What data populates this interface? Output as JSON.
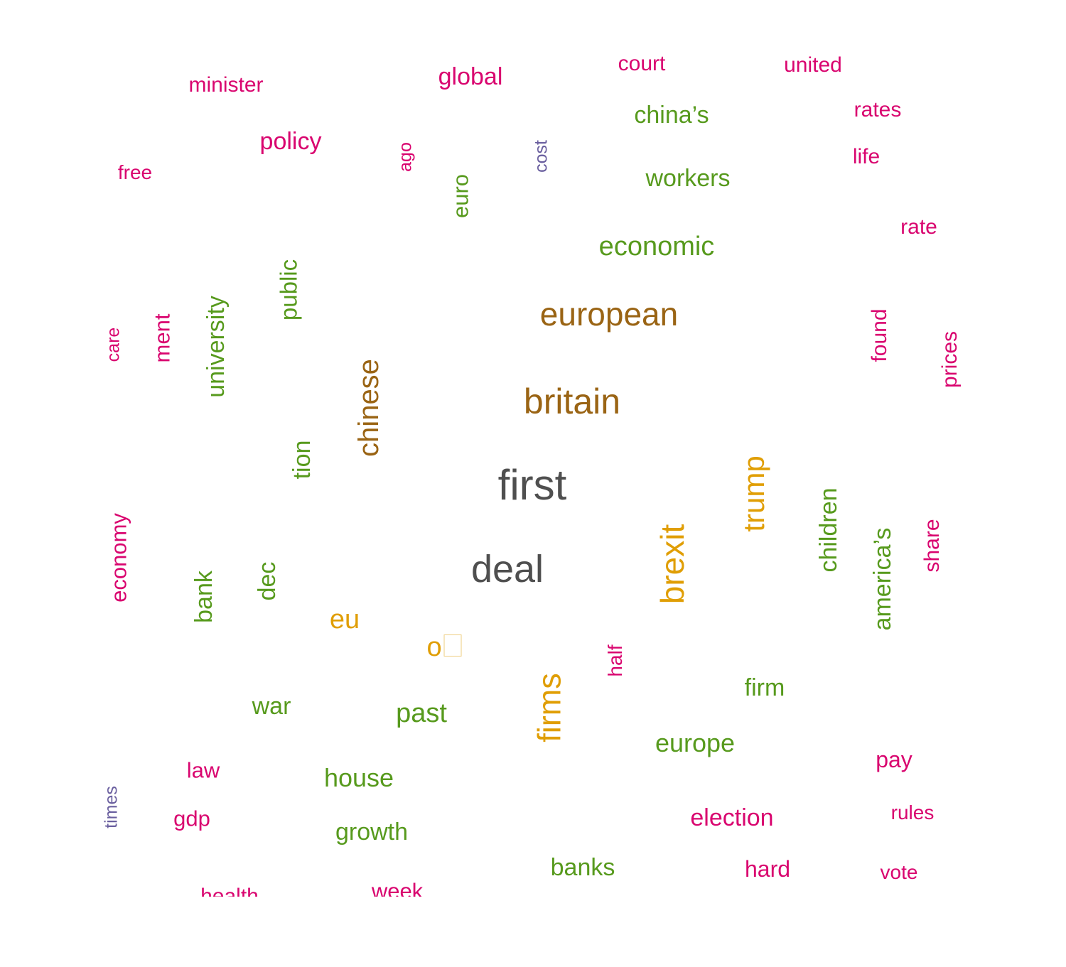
{
  "colors": {
    "pink": "#d9056f",
    "green": "#579a1d",
    "brown": "#9a6414",
    "gray": "#4f4f4f",
    "orange": "#e09e05",
    "slate": "#6a5f9f"
  },
  "words": [
    {
      "text": "minister",
      "color": "pink"
    },
    {
      "text": "global",
      "color": "pink"
    },
    {
      "text": "court",
      "color": "pink"
    },
    {
      "text": "united",
      "color": "pink"
    },
    {
      "text": "china’s",
      "color": "green"
    },
    {
      "text": "rates",
      "color": "pink"
    },
    {
      "text": "policy",
      "color": "pink"
    },
    {
      "text": "ago",
      "color": "pink"
    },
    {
      "text": "cost",
      "color": "slate"
    },
    {
      "text": "life",
      "color": "pink"
    },
    {
      "text": "free",
      "color": "pink"
    },
    {
      "text": "euro",
      "color": "green"
    },
    {
      "text": "workers",
      "color": "green"
    },
    {
      "text": "rate",
      "color": "pink"
    },
    {
      "text": "economic",
      "color": "green"
    },
    {
      "text": "public",
      "color": "green"
    },
    {
      "text": "european",
      "color": "brown"
    },
    {
      "text": "care",
      "color": "pink"
    },
    {
      "text": "ment",
      "color": "pink"
    },
    {
      "text": "university",
      "color": "green"
    },
    {
      "text": "found",
      "color": "pink"
    },
    {
      "text": "prices",
      "color": "pink"
    },
    {
      "text": "chinese",
      "color": "brown"
    },
    {
      "text": "britain",
      "color": "brown"
    },
    {
      "text": "tion",
      "color": "green"
    },
    {
      "text": "first",
      "color": "gray"
    },
    {
      "text": "trump",
      "color": "orange"
    },
    {
      "text": "children",
      "color": "green"
    },
    {
      "text": "economy",
      "color": "pink"
    },
    {
      "text": "america’s",
      "color": "green"
    },
    {
      "text": "share",
      "color": "pink"
    },
    {
      "text": "deal",
      "color": "gray"
    },
    {
      "text": "brexit",
      "color": "orange"
    },
    {
      "text": "bank",
      "color": "green"
    },
    {
      "text": "dec",
      "color": "green"
    },
    {
      "text": "eu",
      "color": "orange"
    },
    {
      "text": "o",
      "color": "orange"
    },
    {
      "text": "half",
      "color": "pink"
    },
    {
      "text": "firm",
      "color": "green"
    },
    {
      "text": "war",
      "color": "green"
    },
    {
      "text": "past",
      "color": "green"
    },
    {
      "text": "firms",
      "color": "orange"
    },
    {
      "text": "europe",
      "color": "green"
    },
    {
      "text": "pay",
      "color": "pink"
    },
    {
      "text": "law",
      "color": "pink"
    },
    {
      "text": "house",
      "color": "green"
    },
    {
      "text": "times",
      "color": "slate"
    },
    {
      "text": "gdp",
      "color": "pink"
    },
    {
      "text": "election",
      "color": "pink"
    },
    {
      "text": "rules",
      "color": "pink"
    },
    {
      "text": "growth",
      "color": "green"
    },
    {
      "text": "banks",
      "color": "green"
    },
    {
      "text": "hard",
      "color": "pink"
    },
    {
      "text": "vote",
      "color": "pink"
    },
    {
      "text": "health",
      "color": "pink"
    },
    {
      "text": "week",
      "color": "pink"
    }
  ]
}
